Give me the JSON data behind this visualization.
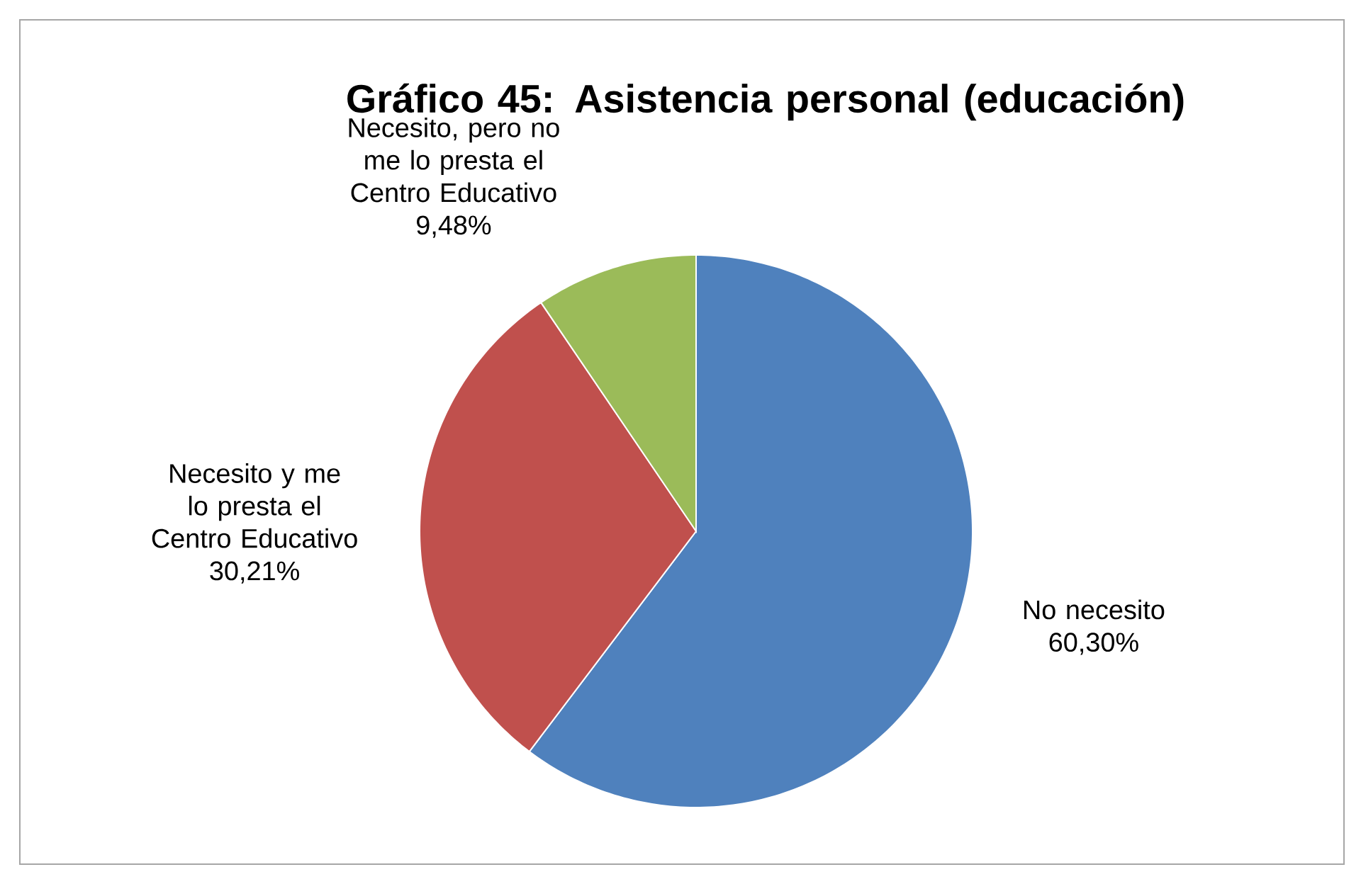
{
  "chart_data": {
    "type": "pie",
    "title": "Gráfico 45: Asistencia personal (educación)",
    "categories": [
      "No necesito",
      "Necesito y me lo presta el Centro Educativo",
      "Necesito, pero no me lo presta el Centro Educativo"
    ],
    "values": [
      60.3,
      30.21,
      9.48
    ],
    "colors": [
      "#4f81bd",
      "#c0504d",
      "#9bbb59"
    ],
    "value_labels": [
      "60,30%",
      "30,21%",
      "9,48%"
    ]
  }
}
